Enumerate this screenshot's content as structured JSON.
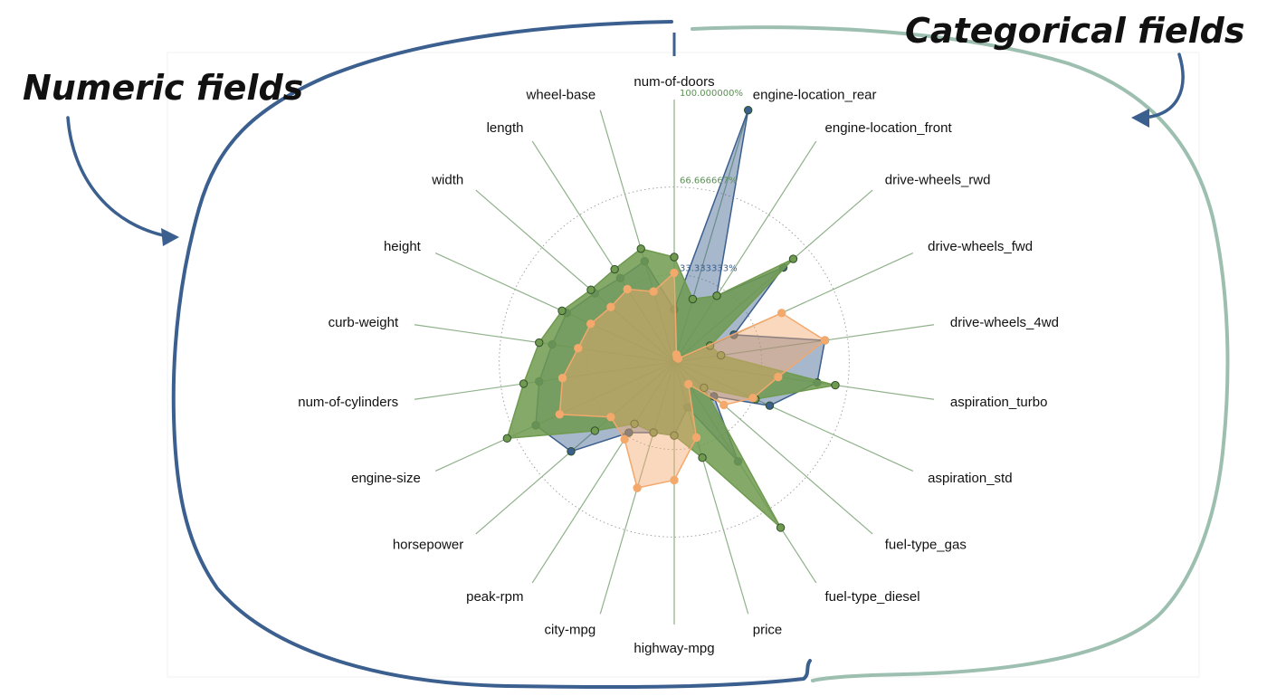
{
  "annotations": {
    "numeric": "Numeric fields",
    "categorical": "Categorical fields"
  },
  "colors": {
    "blue": "#3b5f8e",
    "green": "#6f9a4f",
    "orange": "#f3a86c",
    "tick_green": "#5e8f57",
    "tick_blue": "#3b5f8e",
    "annot_blue": "#3b5f8e",
    "annot_teal": "#9dbfb0"
  },
  "chart_data": {
    "type": "radar",
    "axes": [
      "num-of-doors",
      "engine-location_rear",
      "engine-location_front",
      "drive-wheels_rwd",
      "drive-wheels_fwd",
      "drive-wheels_4wd",
      "aspiration_turbo",
      "aspiration_std",
      "fuel-type_gas",
      "fuel-type_diesel",
      "price",
      "highway-mpg",
      "city-mpg",
      "peak-rpm",
      "horsepower",
      "engine-size",
      "num-of-cylinders",
      "curb-weight",
      "height",
      "width",
      "length",
      "wheel-base"
    ],
    "ticks": [
      "33.333333%",
      "66.666667%",
      "100.000000%"
    ],
    "rmax": 100,
    "series": [
      {
        "color": "blue",
        "values": [
          20,
          100,
          30,
          55,
          25,
          58,
          55,
          40,
          20,
          45,
          18,
          28,
          28,
          32,
          52,
          58,
          52,
          47,
          45,
          40,
          38,
          40
        ]
      },
      {
        "color": "green",
        "values": [
          40,
          25,
          30,
          60,
          15,
          18,
          62,
          34,
          15,
          75,
          38,
          28,
          28,
          28,
          40,
          70,
          58,
          52,
          47,
          42,
          42,
          45
        ]
      },
      {
        "color": "orange",
        "values": [
          34,
          3,
          2,
          2,
          45,
          58,
          40,
          33,
          25,
          10,
          30,
          45,
          50,
          35,
          32,
          48,
          43,
          37,
          35,
          32,
          33,
          28
        ]
      }
    ]
  }
}
